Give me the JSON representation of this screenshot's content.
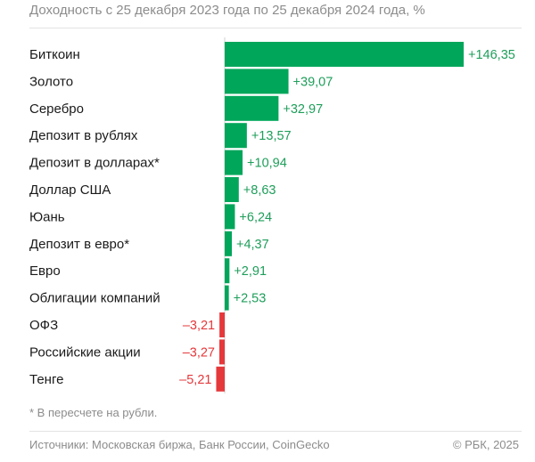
{
  "chart_data": {
    "type": "bar",
    "orientation": "horizontal",
    "title": "Доходность с 25 декабря 2023 года по 25 декабря 2024 года, %",
    "categories": [
      "Биткоин",
      "Золото",
      "Серебро",
      "Депозит в рублях",
      "Депозит в долларах*",
      "Доллар США",
      "Юань",
      "Депозит в евро*",
      "Евро",
      "Облигации компаний",
      "ОФЗ",
      "Российские акции",
      "Тенге"
    ],
    "values": [
      146.35,
      39.07,
      32.97,
      13.57,
      10.94,
      8.63,
      6.24,
      4.37,
      2.91,
      2.53,
      -3.21,
      -3.27,
      -5.21
    ],
    "value_labels": [
      "+146,35",
      "+39,07",
      "+32,97",
      "+13,57",
      "+10,94",
      "+8,63",
      "+6,24",
      "+4,37",
      "+2,91",
      "+2,53",
      "–3,21",
      "–3,27",
      "–5,21"
    ],
    "colors": {
      "positive": "#00a65a",
      "negative": "#e5383b",
      "positive_label": "#1e9e5a",
      "negative_label": "#e5383b"
    },
    "grid": false,
    "legend": "none"
  },
  "footnote": "* В пересчете на рубли.",
  "sources": "Источники: Московская биржа, Банк России, CoinGecko",
  "copyright": "© РБК, 2025"
}
